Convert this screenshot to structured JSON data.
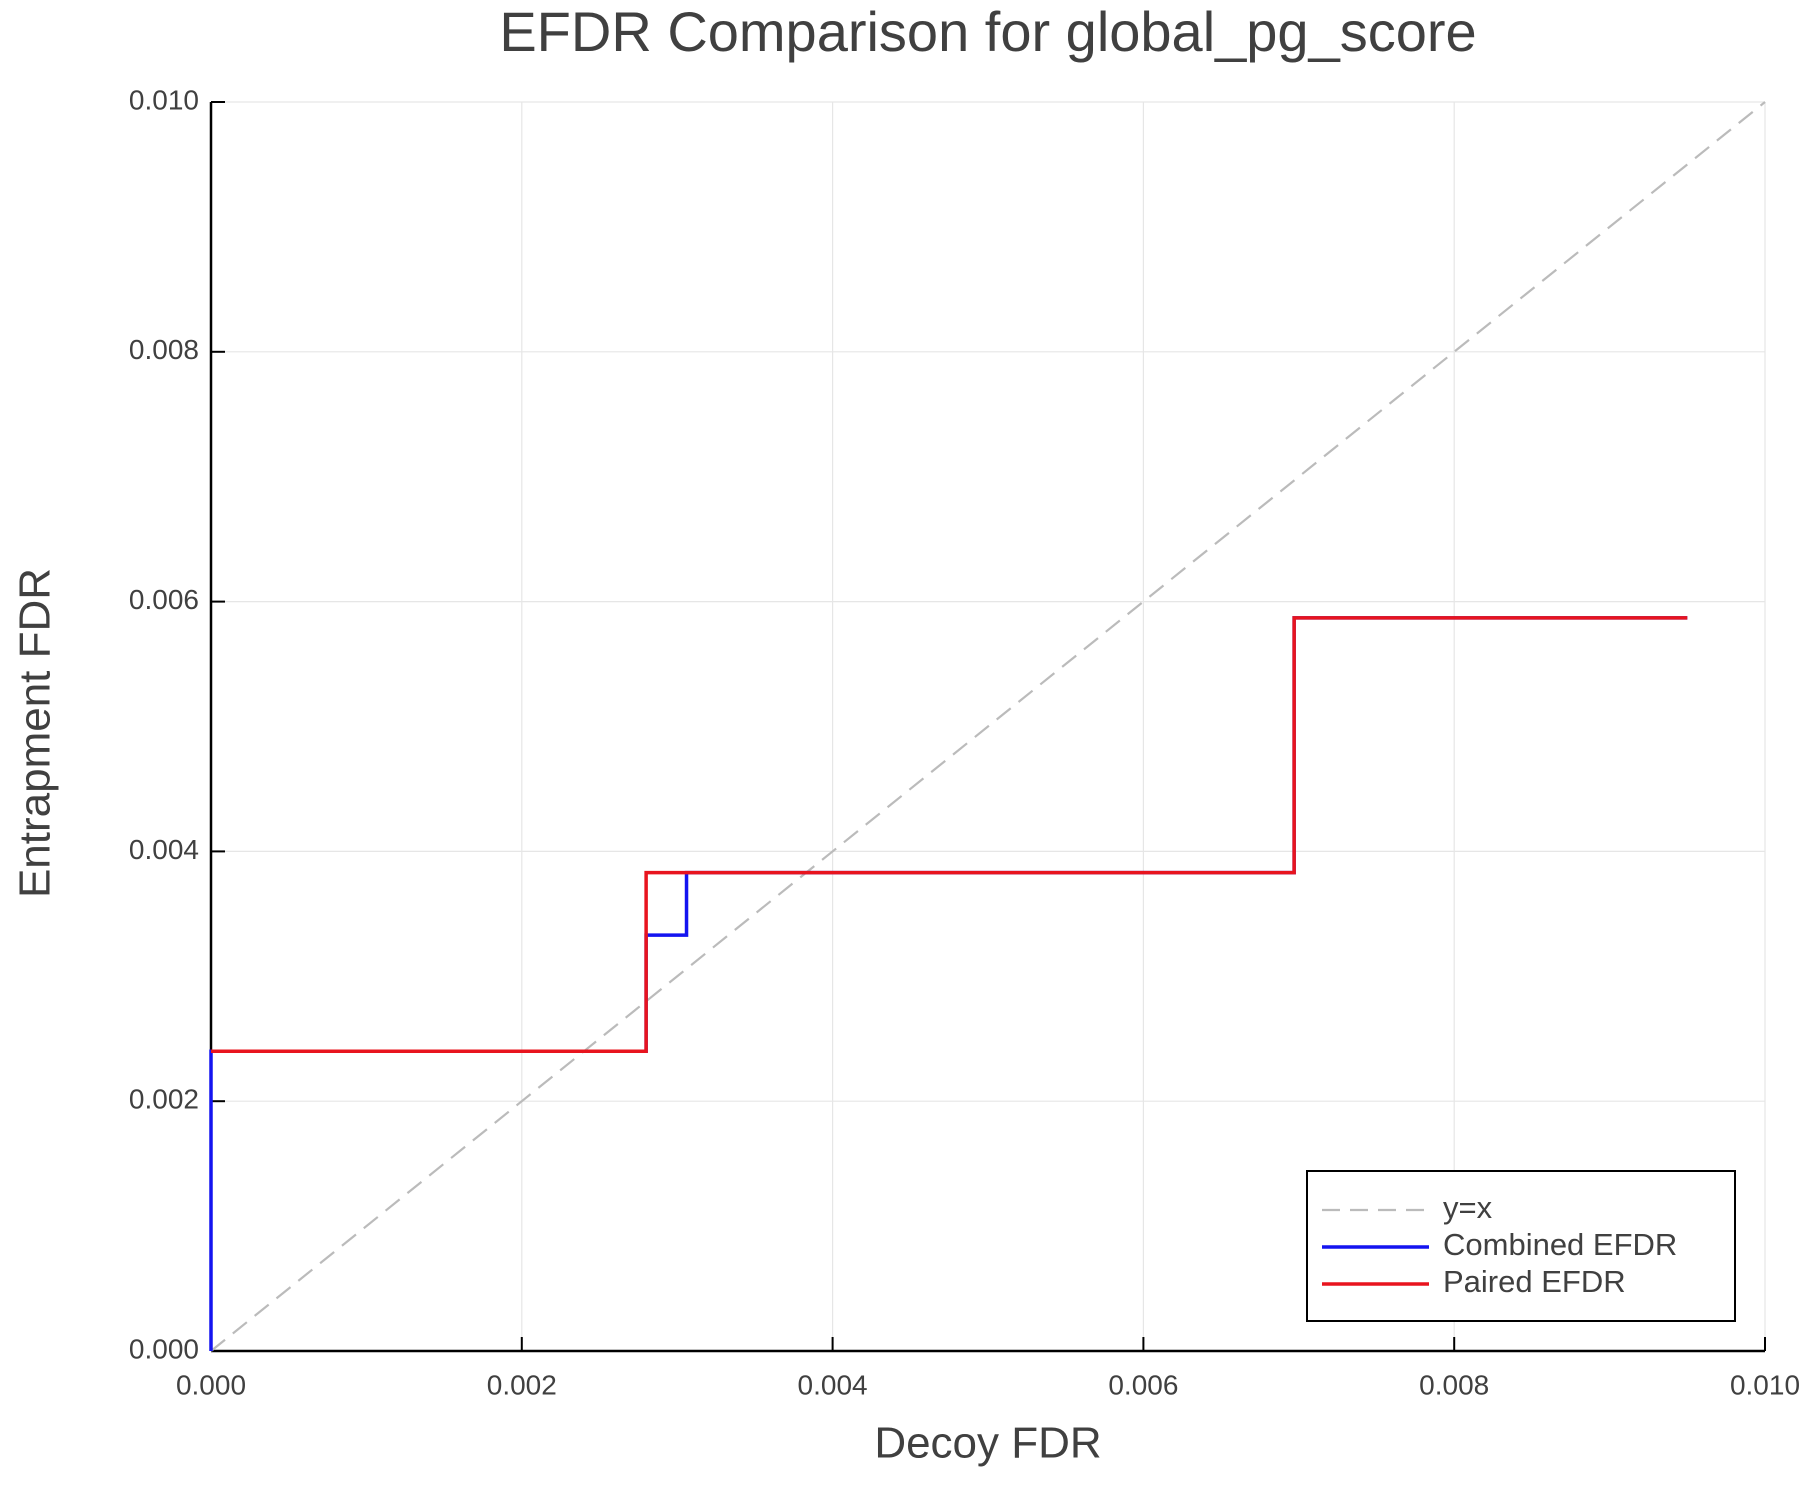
{
  "chart_data": {
    "type": "line",
    "title": "EFDR Comparison for global_pg_score",
    "xlabel": "Decoy FDR",
    "ylabel": "Entrapment FDR",
    "xlim": [
      0,
      0.01
    ],
    "ylim": [
      0,
      0.01
    ],
    "xticks": [
      {
        "value": 0,
        "label": "0.000"
      },
      {
        "value": 0.002,
        "label": "0.002"
      },
      {
        "value": 0.004,
        "label": "0.004"
      },
      {
        "value": 0.006,
        "label": "0.006"
      },
      {
        "value": 0.008,
        "label": "0.008"
      },
      {
        "value": 0.01,
        "label": "0.010"
      }
    ],
    "yticks": [
      {
        "value": 0,
        "label": "0.000"
      },
      {
        "value": 0.002,
        "label": "0.002"
      },
      {
        "value": 0.004,
        "label": "0.004"
      },
      {
        "value": 0.006,
        "label": "0.006"
      },
      {
        "value": 0.008,
        "label": "0.008"
      },
      {
        "value": 0.01,
        "label": "0.010"
      }
    ],
    "grid": true,
    "legend": "lower right",
    "series": [
      {
        "name": "y=x",
        "color": "#bbbbbb",
        "dashed": true,
        "x": [
          0,
          0.01
        ],
        "values": [
          0,
          0.01
        ]
      },
      {
        "name": "Combined EFDR",
        "color": "#1414f0",
        "dashed": false,
        "x": [
          0,
          0,
          0.0028,
          0.0028,
          0.00306,
          0.00306,
          0.00697,
          0.00697,
          0.0095
        ],
        "values": [
          0,
          0.0024,
          0.0024,
          0.00333,
          0.00333,
          0.00383,
          0.00383,
          0.00587,
          0.00587
        ]
      },
      {
        "name": "Paired EFDR",
        "color": "#e8141e",
        "dashed": false,
        "x": [
          0,
          0.0028,
          0.0028,
          0.00697,
          0.00697,
          0.0095
        ],
        "values": [
          0.0024,
          0.0024,
          0.00383,
          0.00383,
          0.00587,
          0.00587
        ]
      }
    ]
  }
}
